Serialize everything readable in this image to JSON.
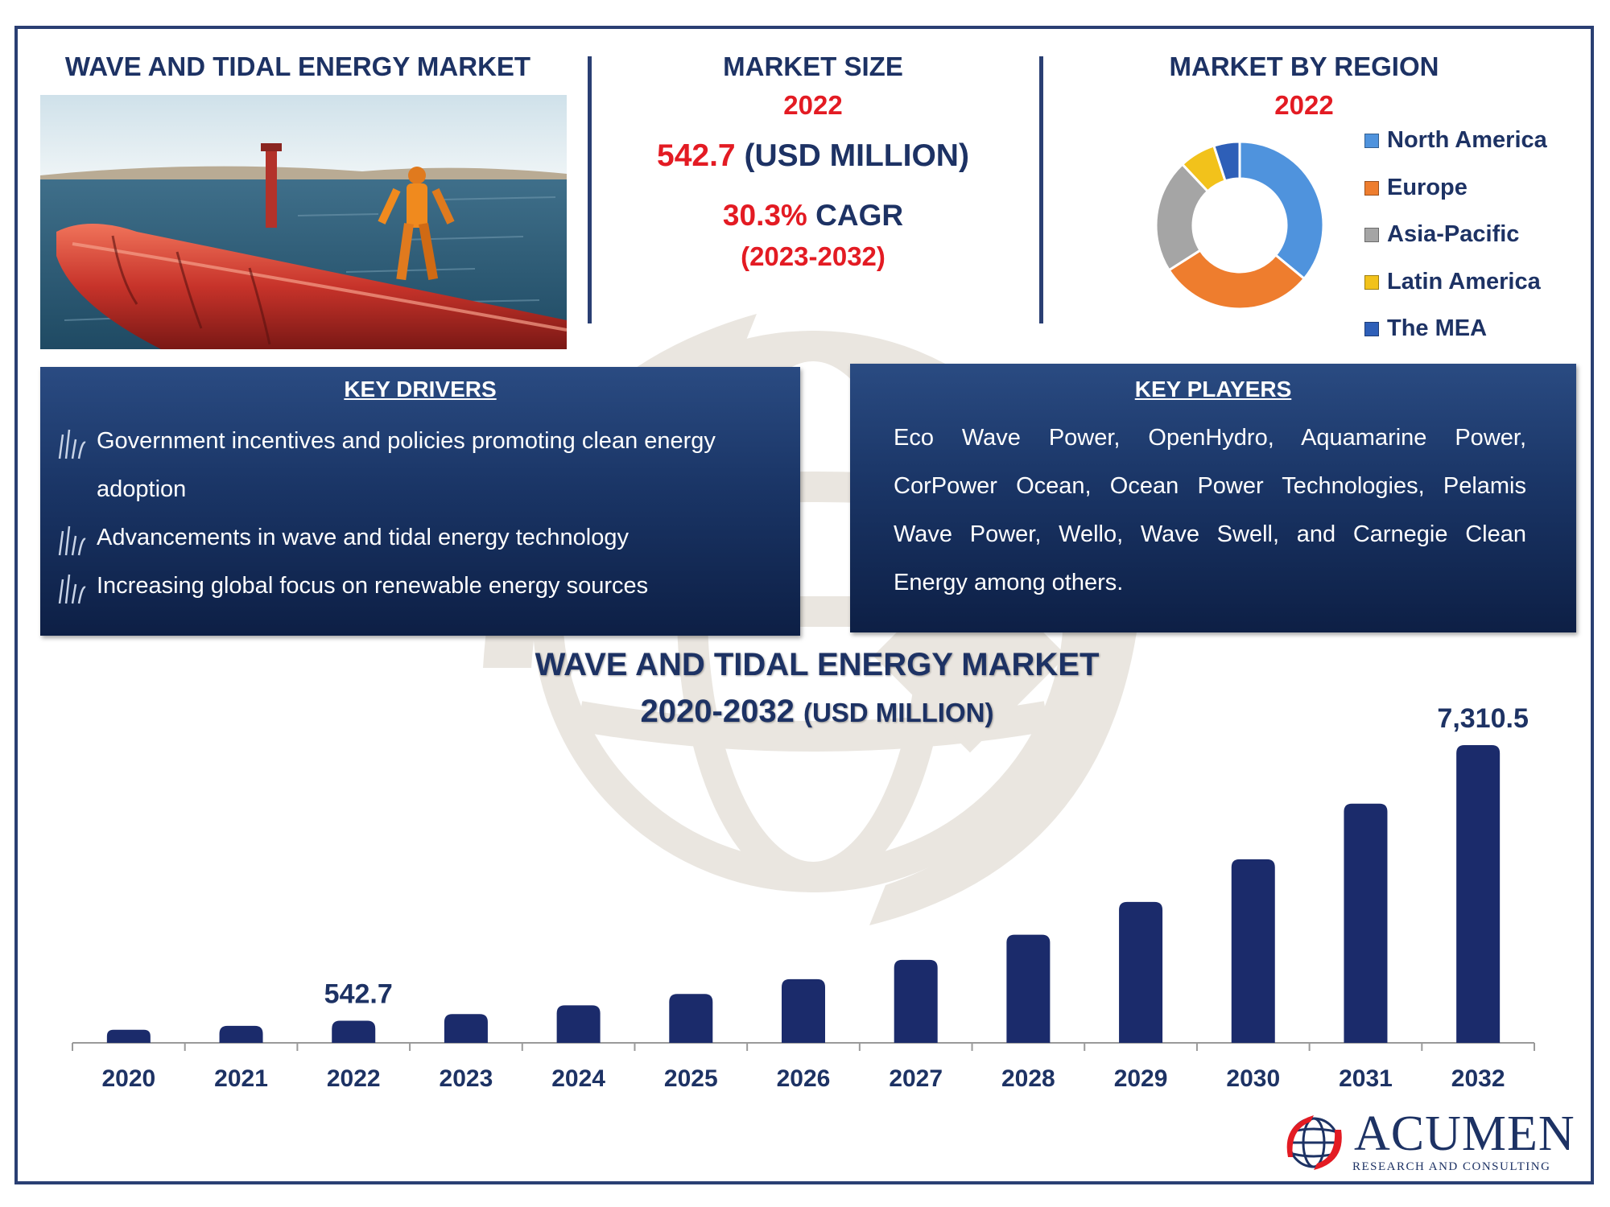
{
  "header": {
    "title": "WAVE AND TIDAL ENERGY MARKET",
    "market_size_label": "MARKET SIZE",
    "market_size_year": "2022",
    "market_size_value": "542.7",
    "market_size_unit": "(USD MILLION)",
    "cagr_value": "30.3%",
    "cagr_label": "CAGR",
    "cagr_period": "(2023-2032)",
    "region_label": "MARKET BY REGION",
    "region_year": "2022"
  },
  "colors": {
    "navy": "#1d3264",
    "red": "#e31b23",
    "bar": "#1b2b6b",
    "north_america": "#4f93dd",
    "europe": "#ee7d2e",
    "asia_pacific": "#a5a5a5",
    "latin_america": "#f2c21b",
    "mea": "#2e5fb8"
  },
  "region_chart": {
    "type": "pie",
    "legend": [
      "North America",
      "Europe",
      "Asia-Pacific",
      "Latin America",
      "The MEA"
    ],
    "values": [
      36,
      30,
      22,
      7,
      5
    ]
  },
  "key_drivers": {
    "title": "KEY DRIVERS",
    "items": [
      "Government incentives and policies promoting clean energy adoption",
      "Advancements in wave and tidal energy technology",
      "Increasing global focus on renewable energy sources"
    ]
  },
  "key_players": {
    "title": "KEY PLAYERS",
    "text": "Eco Wave Power, OpenHydro, Aquamarine Power, CorPower Ocean, Ocean Power Technologies, Pelamis Wave Power, Wello, Wave Swell,  and Carnegie Clean Energy among others."
  },
  "chart_title": {
    "line1": "WAVE AND TIDAL ENERGY MARKET",
    "line2_main": "2020-2032",
    "line2_unit": "(USD MILLION)"
  },
  "chart_data": {
    "type": "bar",
    "categories": [
      "2020",
      "2021",
      "2022",
      "2023",
      "2024",
      "2025",
      "2026",
      "2027",
      "2028",
      "2029",
      "2030",
      "2031",
      "2032"
    ],
    "values": [
      320,
      417,
      542.7,
      707,
      921,
      1200,
      1564,
      2038,
      2655,
      3460,
      4508,
      5874,
      7310.5
    ],
    "data_labels": [
      {
        "category": "2022",
        "text": "542.7"
      },
      {
        "category": "2032",
        "text": "7,310.5"
      }
    ],
    "ylim": [
      0,
      7310.5
    ]
  },
  "logo": {
    "name": "ACUMEN",
    "tagline": "RESEARCH AND CONSULTING"
  }
}
